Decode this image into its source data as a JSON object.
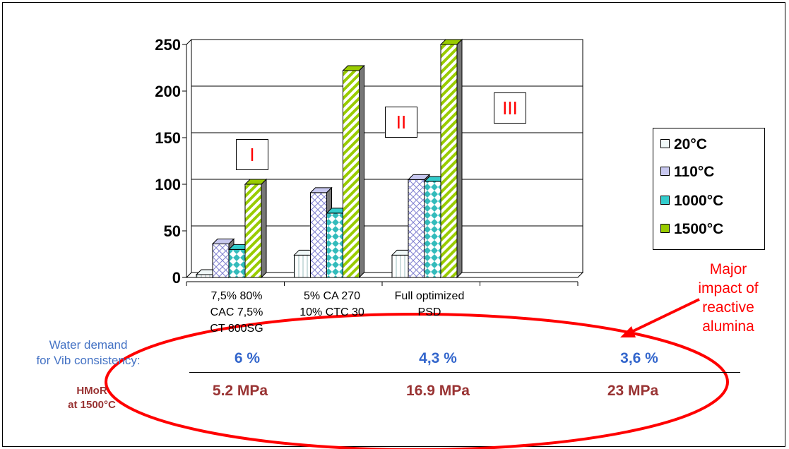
{
  "chart_data": {
    "type": "bar",
    "categories": [
      "7,5% 80% CAC 7,5% CT 800SG",
      "5% CA 270 10% CTC 30",
      "Full optimized PSD",
      ""
    ],
    "category_lines": [
      [
        "7,5% 80%",
        "CAC 7,5%",
        "CT 800SG"
      ],
      [
        "5% CA 270",
        "10% CTC 30"
      ],
      [
        "Full optimized",
        "PSD"
      ],
      []
    ],
    "series": [
      {
        "name": "20°C",
        "values": [
          3,
          24,
          24,
          0
        ],
        "color": "#f0f8f8"
      },
      {
        "name": "110°C",
        "values": [
          36,
          91,
          105,
          0
        ],
        "color": "#c8c8f0"
      },
      {
        "name": "1000°C",
        "values": [
          30,
          69,
          103,
          0
        ],
        "color": "#33cccc"
      },
      {
        "name": "1500°C",
        "values": [
          100,
          222,
          250,
          0
        ],
        "color": "#99cc00"
      }
    ],
    "ylim": [
      0,
      250
    ],
    "yticks": [
      "0",
      "50",
      "100",
      "150",
      "200",
      "250"
    ],
    "grid": true,
    "legend_position": "right",
    "regions": [
      "I",
      "II",
      "III"
    ]
  },
  "annotation": {
    "lines": [
      "Major",
      "impact of",
      "reactive",
      "alumina"
    ]
  },
  "water_demand": {
    "label_lines": [
      "Water demand",
      "for Vib consistency:"
    ],
    "values": [
      "6 %",
      "4,3 %",
      "3,6 %"
    ]
  },
  "hmor": {
    "label_lines": [
      "HMoR",
      "at 1500°C"
    ],
    "values": [
      "5.2 MPa",
      "16.9 MPa",
      "23 MPa"
    ]
  },
  "colors": {
    "region_text": "#ff0000",
    "water_demand": "#3366cc",
    "hmor": "#993333",
    "ellipse": "#ff0000"
  }
}
